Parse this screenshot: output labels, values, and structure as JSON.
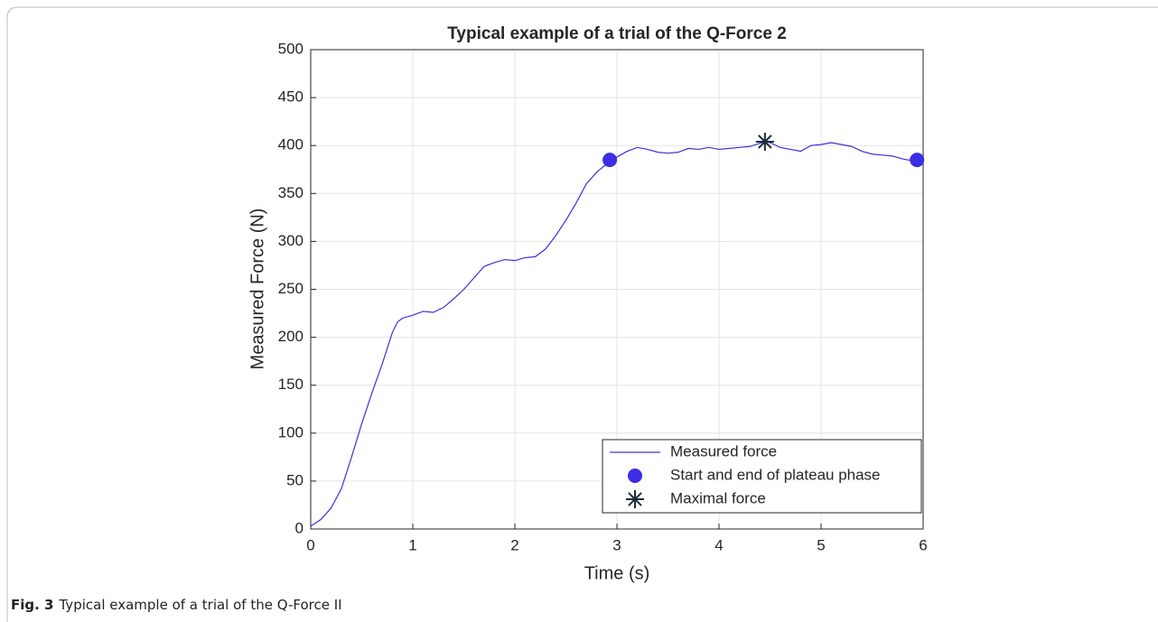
{
  "chart_data": {
    "type": "line",
    "title": "Typical example of a trial of the Q-Force 2",
    "x_label": "Time (s)",
    "y_label": "Measured Force (N)",
    "xlim": [
      0,
      6
    ],
    "ylim": [
      0,
      500
    ],
    "xticks": [
      0,
      1,
      2,
      3,
      4,
      5,
      6
    ],
    "yticks": [
      0,
      50,
      100,
      150,
      200,
      250,
      300,
      350,
      400,
      450,
      500
    ],
    "grid": true,
    "legend_position": "lower right",
    "series": [
      {
        "name": "Measured force",
        "color": "#3a33d6",
        "marker": "none",
        "x": [
          0,
          0.1,
          0.2,
          0.3,
          0.4,
          0.5,
          0.6,
          0.7,
          0.8,
          0.85,
          0.9,
          1.0,
          1.1,
          1.2,
          1.3,
          1.4,
          1.5,
          1.6,
          1.7,
          1.8,
          1.9,
          2.0,
          2.1,
          2.2,
          2.3,
          2.4,
          2.5,
          2.6,
          2.7,
          2.8,
          2.9,
          3.0,
          3.1,
          3.2,
          3.3,
          3.4,
          3.5,
          3.6,
          3.7,
          3.8,
          3.9,
          4.0,
          4.1,
          4.2,
          4.3,
          4.45,
          4.5,
          4.6,
          4.7,
          4.8,
          4.9,
          5.0,
          5.1,
          5.2,
          5.3,
          5.4,
          5.5,
          5.6,
          5.7,
          5.8,
          5.9,
          5.94
        ],
        "values": [
          3,
          10,
          22,
          42,
          75,
          110,
          142,
          172,
          205,
          216,
          220,
          223,
          227,
          226,
          231,
          240,
          250,
          262,
          274,
          278,
          281,
          280,
          283,
          284,
          292,
          306,
          322,
          340,
          360,
          372,
          381,
          388,
          394,
          398,
          396,
          393,
          392,
          393,
          397,
          396,
          398,
          396,
          397,
          398,
          399,
          404,
          403,
          398,
          396,
          394,
          400,
          401,
          403,
          401,
          399,
          394,
          391,
          390,
          389,
          386,
          384,
          384
        ]
      },
      {
        "name": "Start and end of plateau phase",
        "color": "#3b2ee6",
        "marker": "circle",
        "x": [
          2.93,
          5.94
        ],
        "values": [
          385,
          385
        ]
      },
      {
        "name": "Maximal force",
        "color": "#1c2b3a",
        "marker": "star",
        "x": [
          4.45
        ],
        "values": [
          404
        ]
      }
    ]
  },
  "caption": {
    "label": "Fig. 3",
    "text": "Typical example of a trial of the Q-Force II"
  }
}
